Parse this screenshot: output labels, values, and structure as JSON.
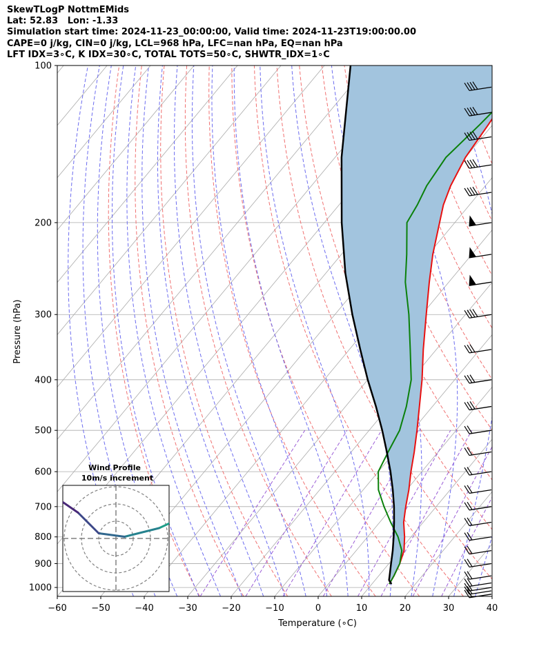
{
  "header": {
    "title": "SkewTLogP NottmEMids",
    "latlon": "Lat: 52.83   Lon: -1.33",
    "times": "Simulation start time: 2024-11-23_00:00:00, Valid time: 2024-11-23T19:00:00.00",
    "params": "CAPE=0 j/kg, CIN=0 j/kg, LCL=968 hPa, LFC=nan hPa, EQ=nan hPa",
    "indices": "LFT IDX=3∘C, K IDX=30∘C, TOTAL TOTS=50∘C, SHWTR_IDX=1∘C"
  },
  "colors": {
    "temperature": "#e81010",
    "dewpoint": "#0a800a",
    "parcel": "#000000",
    "shade": "#a2c4de",
    "dry_adiabat": "#f07070",
    "moist_adiabat": "#6b6bef",
    "mixing_ratio": "#9a5cd6",
    "isotherm": "#aaaaaa"
  },
  "chart_data": [
    {
      "type": "line",
      "name": "skew-t-log-p",
      "xlabel": "Temperature (∘C)",
      "ylabel": "Pressure (hPa)",
      "xlim": [
        -60,
        40
      ],
      "ylim": [
        1040,
        100
      ],
      "y_scale": "log",
      "skew": true,
      "grid": true,
      "x_ticks": [
        "−60",
        "−50",
        "−40",
        "−30",
        "−20",
        "−10",
        "0",
        "10",
        "20",
        "30",
        "40"
      ],
      "y_ticks": [
        "100",
        "200",
        "300",
        "400",
        "500",
        "600",
        "700",
        "800",
        "900",
        "1000"
      ],
      "series": [
        {
          "key": "temperature",
          "p": [
            985,
            950,
            900,
            850,
            800,
            750,
            700,
            650,
            600,
            550,
            500,
            450,
            400,
            350,
            300,
            260,
            230,
            200,
            185,
            170,
            150,
            130,
            115,
            100
          ],
          "t": [
            14,
            13.5,
            12.5,
            11,
            8.5,
            5.5,
            3,
            0.5,
            -2.5,
            -5.5,
            -9,
            -13,
            -17.5,
            -23,
            -29,
            -34.5,
            -39,
            -43.5,
            -46,
            -48,
            -50,
            -51,
            -52,
            -53
          ]
        },
        {
          "key": "dewpoint",
          "p": [
            985,
            950,
            900,
            850,
            800,
            750,
            700,
            650,
            600,
            550,
            500,
            450,
            400,
            350,
            300,
            260,
            230,
            200,
            185,
            170,
            150,
            130,
            115,
            100
          ],
          "t": [
            14,
            13.5,
            12.5,
            10.5,
            7,
            2.5,
            -2,
            -6.5,
            -10,
            -11.5,
            -13,
            -16,
            -20,
            -26,
            -33,
            -40,
            -45,
            -51,
            -52,
            -53.5,
            -54.5,
            -53,
            -52,
            -50
          ]
        },
        {
          "key": "parcel",
          "p": [
            985,
            968,
            950,
            900,
            850,
            800,
            750,
            700,
            650,
            600,
            550,
            500,
            450,
            400,
            350,
            300,
            250,
            200,
            150,
            100
          ],
          "t": [
            14.5,
            13.2,
            12.5,
            10.5,
            8.4,
            6,
            3.3,
            0.3,
            -3.2,
            -7.2,
            -11.8,
            -17,
            -23,
            -30,
            -37.5,
            -46,
            -55.5,
            -66,
            -78.5,
            -94
          ]
        }
      ],
      "wind_barb_pressures": [
        1030,
        1015,
        1000,
        980,
        950,
        900,
        850,
        800,
        750,
        700,
        650,
        600,
        550,
        500,
        450,
        400,
        350,
        300,
        260,
        230,
        200,
        175,
        155,
        137,
        123,
        110
      ]
    },
    {
      "type": "line",
      "name": "hodograph",
      "title": "Wind Profile",
      "subtitle": "10m/s increment",
      "u": [
        7.5,
        6,
        4,
        2.5,
        0.5,
        -1,
        -2.2,
        -3.5,
        -5,
        -5.8,
        -6
      ],
      "v": [
        3.8,
        2.6,
        1.3,
        0.6,
        0.1,
        0.3,
        1.5,
        2.4,
        2.5,
        1.5,
        0.8
      ]
    }
  ]
}
